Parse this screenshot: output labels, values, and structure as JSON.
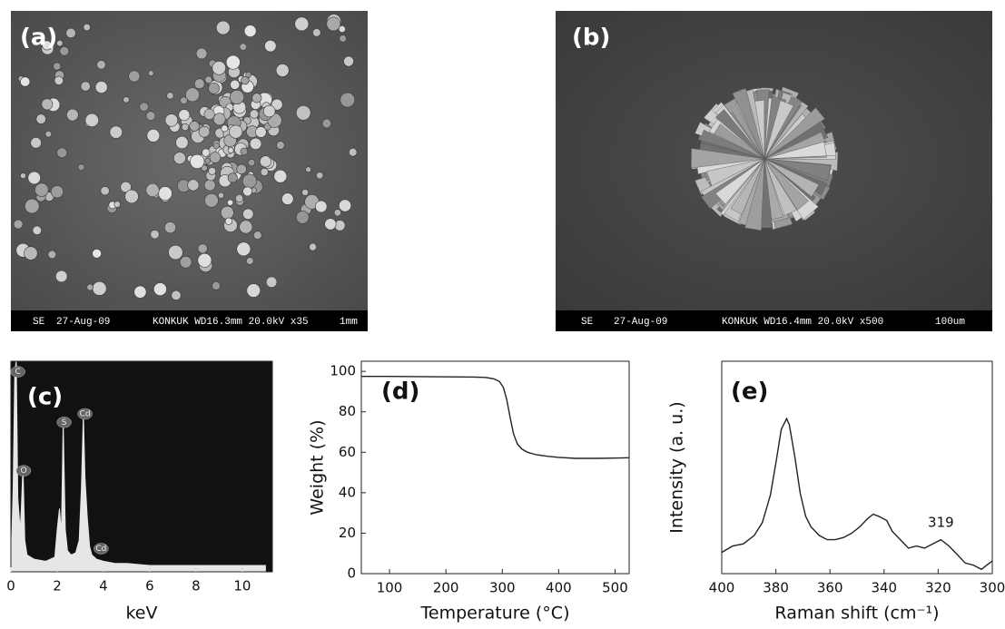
{
  "panels": [
    {
      "label": "(a)",
      "info_bar": [
        "SE",
        "27-Aug-09",
        "KONKUK WD16.3mm 20.0kV x35",
        "1mm"
      ]
    },
    {
      "label": "(b)",
      "info_bar": [
        "SE",
        "27-Aug-09",
        "KONKUK WD16.4mm 20.0kV x500",
        "100um"
      ]
    }
  ],
  "chart_data": [
    {
      "type": "area",
      "panel_label": "(c)",
      "x_label": "keV",
      "x": [
        0,
        0.1,
        0.17,
        0.23,
        0.3,
        0.4,
        0.45,
        0.52,
        0.6,
        0.7,
        1.0,
        1.5,
        1.9,
        2.0,
        2.1,
        2.18,
        2.26,
        2.35,
        2.45,
        2.6,
        2.8,
        2.95,
        3.05,
        3.13,
        3.2,
        3.3,
        3.4,
        3.5,
        3.7,
        4.0,
        4.5,
        5.0,
        6.0,
        7.0,
        8.0,
        9.0,
        10.0,
        11.0
      ],
      "values": [
        0,
        40,
        95,
        100,
        35,
        20,
        30,
        50,
        15,
        8,
        6,
        5,
        7,
        20,
        30,
        18,
        71,
        20,
        10,
        8,
        9,
        15,
        40,
        75,
        45,
        26,
        12,
        8,
        6,
        5,
        4,
        4,
        3,
        3,
        3,
        3,
        3,
        3
      ],
      "color": "#e6e6e6",
      "background": "#111111",
      "peak_labels": [
        {
          "text": "C",
          "x": 0.3,
          "y": 95
        },
        {
          "text": "O",
          "x": 0.55,
          "y": 48
        },
        {
          "text": "S",
          "x": 2.3,
          "y": 71
        },
        {
          "text": "Cd",
          "x": 3.2,
          "y": 75
        },
        {
          "text": "Cd",
          "x": 3.9,
          "y": 11
        }
      ],
      "xlim": [
        0,
        11.3
      ],
      "xticks": [
        0,
        2,
        4,
        6,
        8,
        10
      ],
      "ylim": [
        0,
        100
      ]
    },
    {
      "type": "line",
      "panel_label": "(d)",
      "x_label": "Temperature (°C)",
      "y_label": "Weight (%)",
      "x": [
        50,
        100,
        150,
        200,
        250,
        270,
        285,
        295,
        302,
        308,
        314,
        320,
        327,
        335,
        345,
        360,
        380,
        400,
        430,
        470,
        500,
        525
      ],
      "values": [
        97.5,
        97.5,
        97.4,
        97.3,
        97.2,
        97,
        96.3,
        95,
        92,
        86,
        77,
        69,
        64,
        61.5,
        60,
        58.8,
        58,
        57.5,
        57,
        57,
        57.1,
        57.3
      ],
      "color": "#222222",
      "xlim": [
        50,
        525
      ],
      "xticks": [
        100,
        200,
        300,
        400,
        500
      ],
      "ylim": [
        0,
        105
      ],
      "yticks": [
        0,
        20,
        40,
        60,
        80,
        100
      ]
    },
    {
      "type": "line",
      "panel_label": "(e)",
      "x_label": "Raman shift (cm⁻¹)",
      "y_label": "Intensity (a. u.)",
      "x": [
        400,
        396,
        392,
        388,
        385,
        382,
        380,
        378,
        376,
        375,
        373,
        371,
        369,
        367,
        364,
        361,
        358,
        355,
        352,
        349,
        346,
        344,
        342,
        339,
        337,
        334,
        331,
        328,
        325,
        322,
        319,
        316,
        313,
        310,
        307,
        304,
        302,
        300
      ],
      "values": [
        10,
        13,
        14,
        18,
        24,
        37,
        52,
        68,
        73,
        70,
        55,
        38,
        27,
        22,
        18,
        16,
        16,
        17,
        19,
        22,
        26,
        28,
        27,
        25,
        20,
        16,
        12,
        13,
        12,
        14,
        16,
        13,
        9,
        5,
        4,
        2,
        4,
        6
      ],
      "color": "#222222",
      "annotations": [
        {
          "text": "319",
          "x": 319,
          "y": 24
        }
      ],
      "xlim": [
        400,
        300
      ],
      "xticks": [
        400,
        380,
        360,
        340,
        320,
        300
      ],
      "ylim": [
        0,
        100
      ]
    }
  ]
}
